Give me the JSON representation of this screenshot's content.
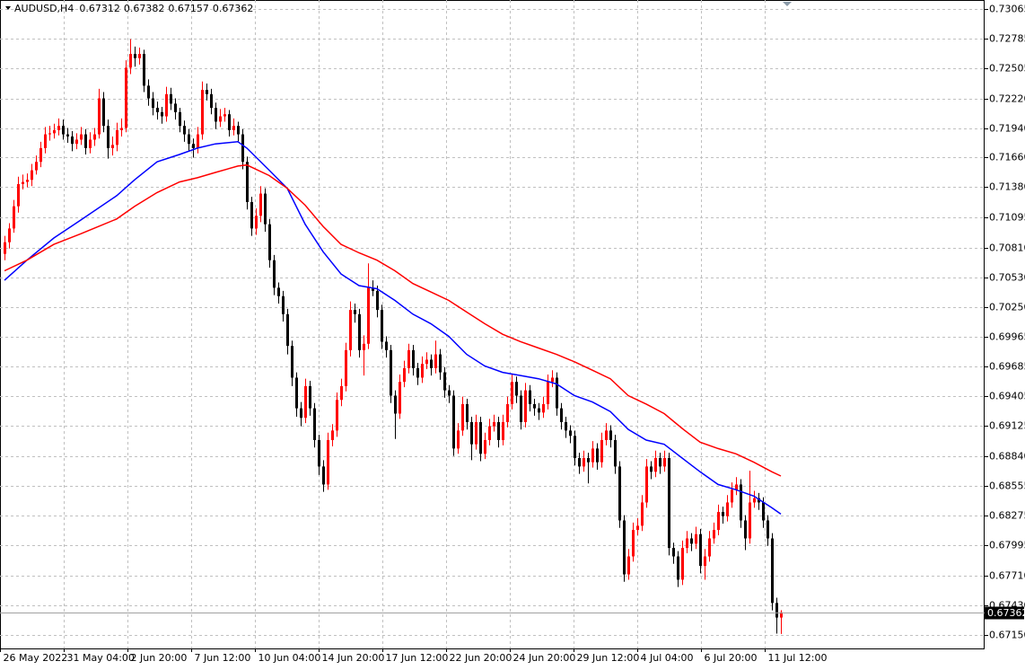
{
  "chart_data": {
    "type": "candlestick",
    "symbol": "AUDUSD,H4",
    "up_color": "#ff0000",
    "down_color": "#000000",
    "grid": true,
    "xlim": [
      -1,
      218.4
    ],
    "ylim": [
      0.6702,
      0.7315
    ],
    "xticks": [
      {
        "value": -1,
        "label": "26 May 2022"
      },
      {
        "value": 13.2,
        "label": "31 May 04:00"
      },
      {
        "value": 27.4,
        "label": "2 Jun 20:00"
      },
      {
        "value": 41.6,
        "label": "7 Jun 12:00"
      },
      {
        "value": 55.8,
        "label": "10 Jun 04:00"
      },
      {
        "value": 70,
        "label": "14 Jun 20:00"
      },
      {
        "value": 84.2,
        "label": "17 Jun 12:00"
      },
      {
        "value": 98.4,
        "label": "22 Jun 20:00"
      },
      {
        "value": 112.6,
        "label": "24 Jun 20:00"
      },
      {
        "value": 126.8,
        "label": "29 Jun 12:00"
      },
      {
        "value": 141,
        "label": "4 Jul 04:00"
      },
      {
        "value": 155.2,
        "label": "6 Jul 20:00"
      },
      {
        "value": 169.4,
        "label": "11 Jul 12:00"
      }
    ],
    "yticks": [
      0.73065,
      0.72785,
      0.72505,
      {
        "value": 0.7222,
        "label": "0.72220"
      },
      {
        "value": 0.7194,
        "label": "0.71940"
      },
      {
        "value": 0.7166,
        "label": "0.71660"
      },
      {
        "value": 0.7138,
        "label": "0.71380"
      },
      0.71095,
      {
        "value": 0.7081,
        "label": "0.70810"
      },
      {
        "value": 0.7053,
        "label": "0.70530"
      },
      {
        "value": 0.7025,
        "label": "0.70250"
      },
      0.69965,
      0.69685,
      0.69405,
      0.69125,
      {
        "value": 0.6884,
        "label": "0.68840"
      },
      0.68555,
      0.68275,
      0.67995,
      {
        "value": 0.6771,
        "label": "0.67710"
      },
      {
        "value": 0.6743,
        "label": "0.67430"
      },
      {
        "value": 0.6715,
        "label": "0.67150"
      }
    ],
    "candles": [
      [
        0.7075,
        0.7092,
        0.7069,
        0.7086
      ],
      [
        0.7086,
        0.7104,
        0.708,
        0.7099
      ],
      [
        0.7099,
        0.7126,
        0.7095,
        0.712
      ],
      [
        0.712,
        0.7148,
        0.7114,
        0.7141
      ],
      [
        0.7141,
        0.715,
        0.7136,
        0.7143
      ],
      [
        0.7143,
        0.7151,
        0.7138,
        0.7145
      ],
      [
        0.7145,
        0.716,
        0.7139,
        0.7154
      ],
      [
        0.7154,
        0.7168,
        0.715,
        0.7162
      ],
      [
        0.7162,
        0.7181,
        0.7157,
        0.7175
      ],
      [
        0.7175,
        0.7195,
        0.717,
        0.7188
      ],
      [
        0.7188,
        0.7196,
        0.7182,
        0.7189
      ],
      [
        0.7189,
        0.7198,
        0.7184,
        0.7192
      ],
      [
        0.7192,
        0.7203,
        0.7187,
        0.7196
      ],
      [
        0.7196,
        0.7202,
        0.7183,
        0.7188
      ],
      [
        0.7188,
        0.7194,
        0.718,
        0.7186
      ],
      [
        0.7186,
        0.7191,
        0.7172,
        0.7179
      ],
      [
        0.7179,
        0.7189,
        0.7174,
        0.7183
      ],
      [
        0.7183,
        0.7195,
        0.7178,
        0.7188
      ],
      [
        0.7188,
        0.7193,
        0.7169,
        0.7175
      ],
      [
        0.7175,
        0.719,
        0.717,
        0.7183
      ],
      [
        0.7183,
        0.7194,
        0.7177,
        0.7188
      ],
      [
        0.7188,
        0.7231,
        0.7184,
        0.7222
      ],
      [
        0.7222,
        0.7228,
        0.719,
        0.7196
      ],
      [
        0.7196,
        0.7202,
        0.7165,
        0.7175
      ],
      [
        0.7175,
        0.7186,
        0.7168,
        0.7178
      ],
      [
        0.7178,
        0.7199,
        0.7172,
        0.7192
      ],
      [
        0.7192,
        0.7203,
        0.7186,
        0.7194
      ],
      [
        0.7194,
        0.7258,
        0.719,
        0.7251
      ],
      [
        0.7251,
        0.7278,
        0.7245,
        0.7264
      ],
      [
        0.7264,
        0.7271,
        0.7252,
        0.726
      ],
      [
        0.726,
        0.727,
        0.7254,
        0.7264
      ],
      [
        0.7264,
        0.7268,
        0.7228,
        0.7234
      ],
      [
        0.7234,
        0.724,
        0.7215,
        0.7222
      ],
      [
        0.7222,
        0.7228,
        0.7206,
        0.7213
      ],
      [
        0.7213,
        0.7219,
        0.7202,
        0.7209
      ],
      [
        0.7209,
        0.7214,
        0.7198,
        0.7205
      ],
      [
        0.7205,
        0.7233,
        0.72,
        0.7226
      ],
      [
        0.7226,
        0.7232,
        0.7211,
        0.7217
      ],
      [
        0.7217,
        0.7222,
        0.7202,
        0.7209
      ],
      [
        0.7209,
        0.7213,
        0.719,
        0.7196
      ],
      [
        0.7196,
        0.7201,
        0.7181,
        0.7188
      ],
      [
        0.7188,
        0.7193,
        0.7172,
        0.7179
      ],
      [
        0.7179,
        0.7184,
        0.7166,
        0.7175
      ],
      [
        0.7175,
        0.7195,
        0.717,
        0.7188
      ],
      [
        0.7188,
        0.7238,
        0.7183,
        0.723
      ],
      [
        0.723,
        0.7236,
        0.722,
        0.7226
      ],
      [
        0.7226,
        0.7231,
        0.7207,
        0.7213
      ],
      [
        0.7213,
        0.7218,
        0.7193,
        0.72
      ],
      [
        0.72,
        0.7212,
        0.7195,
        0.7205
      ],
      [
        0.7205,
        0.7213,
        0.72,
        0.7207
      ],
      [
        0.7207,
        0.7211,
        0.7186,
        0.7192
      ],
      [
        0.7192,
        0.7203,
        0.7187,
        0.7196
      ],
      [
        0.7196,
        0.72,
        0.7181,
        0.7188
      ],
      [
        0.7188,
        0.7193,
        0.7155,
        0.7162
      ],
      [
        0.7162,
        0.7167,
        0.7117,
        0.7124
      ],
      [
        0.7124,
        0.7129,
        0.7092,
        0.7099
      ],
      [
        0.7099,
        0.7118,
        0.7093,
        0.7111
      ],
      [
        0.7111,
        0.7139,
        0.7105,
        0.7132
      ],
      [
        0.7132,
        0.7137,
        0.7096,
        0.7103
      ],
      [
        0.7103,
        0.7108,
        0.7062,
        0.7069
      ],
      [
        0.7069,
        0.7074,
        0.7036,
        0.7043
      ],
      [
        0.7043,
        0.7048,
        0.7028,
        0.7035
      ],
      [
        0.7035,
        0.704,
        0.7011,
        0.7018
      ],
      [
        0.7018,
        0.7023,
        0.698,
        0.6988
      ],
      [
        0.6988,
        0.6993,
        0.695,
        0.6958
      ],
      [
        0.6958,
        0.6963,
        0.6921,
        0.6929
      ],
      [
        0.6929,
        0.6935,
        0.6912,
        0.692
      ],
      [
        0.692,
        0.6957,
        0.6915,
        0.695
      ],
      [
        0.695,
        0.6955,
        0.6922,
        0.6929
      ],
      [
        0.6929,
        0.6934,
        0.6892,
        0.6899
      ],
      [
        0.6899,
        0.6904,
        0.6866,
        0.6874
      ],
      [
        0.6874,
        0.688,
        0.685,
        0.6857
      ],
      [
        0.6857,
        0.6906,
        0.6852,
        0.6899
      ],
      [
        0.6899,
        0.6914,
        0.6893,
        0.6908
      ],
      [
        0.6908,
        0.6944,
        0.6902,
        0.6937
      ],
      [
        0.6937,
        0.6957,
        0.6931,
        0.695
      ],
      [
        0.695,
        0.6991,
        0.6945,
        0.6984
      ],
      [
        0.6984,
        0.703,
        0.6978,
        0.7022
      ],
      [
        0.7022,
        0.7028,
        0.701,
        0.7018
      ],
      [
        0.7018,
        0.7023,
        0.6977,
        0.6984
      ],
      [
        0.6984,
        0.6998,
        0.696,
        0.699
      ],
      [
        0.699,
        0.7066,
        0.6985,
        0.7043
      ],
      [
        0.7043,
        0.705,
        0.7035,
        0.704
      ],
      [
        0.704,
        0.7045,
        0.7015,
        0.7022
      ],
      [
        0.7022,
        0.7027,
        0.6985,
        0.6992
      ],
      [
        0.6992,
        0.6997,
        0.6977,
        0.6984
      ],
      [
        0.6984,
        0.6989,
        0.6934,
        0.6941
      ],
      [
        0.6941,
        0.6946,
        0.69,
        0.6924
      ],
      [
        0.6924,
        0.6961,
        0.6919,
        0.6954
      ],
      [
        0.6954,
        0.6974,
        0.6949,
        0.6967
      ],
      [
        0.6967,
        0.699,
        0.6962,
        0.6984
      ],
      [
        0.6984,
        0.6989,
        0.696,
        0.6967
      ],
      [
        0.6967,
        0.6972,
        0.6951,
        0.6958
      ],
      [
        0.6958,
        0.6978,
        0.6953,
        0.6971
      ],
      [
        0.6971,
        0.6982,
        0.6966,
        0.6975
      ],
      [
        0.6975,
        0.698,
        0.696,
        0.6967
      ],
      [
        0.6967,
        0.6993,
        0.6962,
        0.698
      ],
      [
        0.698,
        0.6985,
        0.6956,
        0.6963
      ],
      [
        0.6963,
        0.6968,
        0.6939,
        0.6946
      ],
      [
        0.6946,
        0.6951,
        0.6934,
        0.6941
      ],
      [
        0.6941,
        0.6946,
        0.6884,
        0.6891
      ],
      [
        0.6891,
        0.6915,
        0.6886,
        0.6908
      ],
      [
        0.6908,
        0.694,
        0.6903,
        0.6933
      ],
      [
        0.6933,
        0.6938,
        0.6909,
        0.6916
      ],
      [
        0.6916,
        0.6921,
        0.688,
        0.6895
      ],
      [
        0.6895,
        0.6923,
        0.689,
        0.6916
      ],
      [
        0.6916,
        0.6921,
        0.6879,
        0.6886
      ],
      [
        0.6886,
        0.6906,
        0.6881,
        0.6899
      ],
      [
        0.6899,
        0.6919,
        0.6894,
        0.6912
      ],
      [
        0.6912,
        0.6923,
        0.6907,
        0.6916
      ],
      [
        0.6916,
        0.6921,
        0.6892,
        0.6899
      ],
      [
        0.6899,
        0.6923,
        0.6894,
        0.6916
      ],
      [
        0.6916,
        0.694,
        0.6911,
        0.6933
      ],
      [
        0.6933,
        0.6961,
        0.6928,
        0.6954
      ],
      [
        0.6954,
        0.6959,
        0.6934,
        0.6941
      ],
      [
        0.6941,
        0.6946,
        0.6909,
        0.6916
      ],
      [
        0.6916,
        0.6953,
        0.6911,
        0.6946
      ],
      [
        0.6946,
        0.6951,
        0.6926,
        0.6933
      ],
      [
        0.6933,
        0.6938,
        0.6922,
        0.6929
      ],
      [
        0.6929,
        0.6934,
        0.6918,
        0.6925
      ],
      [
        0.6925,
        0.694,
        0.692,
        0.6933
      ],
      [
        0.6933,
        0.6961,
        0.6928,
        0.6954
      ],
      [
        0.6954,
        0.6965,
        0.6949,
        0.6958
      ],
      [
        0.6958,
        0.6963,
        0.6922,
        0.6929
      ],
      [
        0.6929,
        0.6934,
        0.6909,
        0.6916
      ],
      [
        0.6916,
        0.6921,
        0.6901,
        0.6908
      ],
      [
        0.6908,
        0.6913,
        0.6896,
        0.6903
      ],
      [
        0.6903,
        0.6908,
        0.6875,
        0.6882
      ],
      [
        0.6882,
        0.6887,
        0.6867,
        0.6874
      ],
      [
        0.6874,
        0.6889,
        0.6869,
        0.6882
      ],
      [
        0.6882,
        0.6887,
        0.6858,
        0.6878
      ],
      [
        0.6878,
        0.6898,
        0.6873,
        0.6891
      ],
      [
        0.6891,
        0.6896,
        0.6871,
        0.6878
      ],
      [
        0.6878,
        0.6906,
        0.6873,
        0.6899
      ],
      [
        0.6899,
        0.6915,
        0.6894,
        0.6908
      ],
      [
        0.6908,
        0.6913,
        0.6892,
        0.6899
      ],
      [
        0.6899,
        0.6904,
        0.6867,
        0.6874
      ],
      [
        0.6874,
        0.6879,
        0.6816,
        0.6823
      ],
      [
        0.6823,
        0.6828,
        0.6765,
        0.6772
      ],
      [
        0.6772,
        0.6796,
        0.6767,
        0.6789
      ],
      [
        0.6789,
        0.6821,
        0.6784,
        0.6814
      ],
      [
        0.6814,
        0.6825,
        0.6809,
        0.6818
      ],
      [
        0.6818,
        0.6847,
        0.6813,
        0.684
      ],
      [
        0.684,
        0.6881,
        0.6835,
        0.6874
      ],
      [
        0.6874,
        0.6879,
        0.6862,
        0.6869
      ],
      [
        0.6869,
        0.6889,
        0.6864,
        0.6882
      ],
      [
        0.6882,
        0.6887,
        0.6867,
        0.6874
      ],
      [
        0.6874,
        0.6889,
        0.6869,
        0.6882
      ],
      [
        0.6882,
        0.6887,
        0.679,
        0.6797
      ],
      [
        0.6797,
        0.6802,
        0.6782,
        0.6789
      ],
      [
        0.6789,
        0.6794,
        0.676,
        0.6767
      ],
      [
        0.6767,
        0.6804,
        0.6762,
        0.6797
      ],
      [
        0.6797,
        0.6813,
        0.6792,
        0.6806
      ],
      [
        0.6806,
        0.6811,
        0.6794,
        0.6801
      ],
      [
        0.6801,
        0.6817,
        0.6796,
        0.681
      ],
      [
        0.681,
        0.6815,
        0.6773,
        0.678
      ],
      [
        0.678,
        0.6796,
        0.6767,
        0.6789
      ],
      [
        0.6789,
        0.6813,
        0.6784,
        0.6806
      ],
      [
        0.6806,
        0.6821,
        0.6801,
        0.6814
      ],
      [
        0.6814,
        0.6838,
        0.6809,
        0.6831
      ],
      [
        0.6831,
        0.6836,
        0.682,
        0.6827
      ],
      [
        0.6827,
        0.6847,
        0.6822,
        0.684
      ],
      [
        0.684,
        0.6859,
        0.6835,
        0.6852
      ],
      [
        0.6852,
        0.6864,
        0.6847,
        0.6857
      ],
      [
        0.6857,
        0.6862,
        0.6816,
        0.6823
      ],
      [
        0.6823,
        0.6828,
        0.6795,
        0.6806
      ],
      [
        0.6806,
        0.687,
        0.6801,
        0.684
      ],
      [
        0.684,
        0.6851,
        0.6835,
        0.6844
      ],
      [
        0.6844,
        0.6849,
        0.6833,
        0.684
      ],
      [
        0.684,
        0.6845,
        0.6816,
        0.6823
      ],
      [
        0.6823,
        0.6828,
        0.6799,
        0.6806
      ],
      [
        0.6806,
        0.6811,
        0.6738,
        0.6745
      ],
      [
        0.6745,
        0.675,
        0.6716,
        0.67312
      ],
      [
        0.67312,
        0.67382,
        0.67157,
        0.67362
      ]
    ],
    "moving_averages": [
      {
        "color": "#0000ff",
        "x": [
          0,
          5,
          11,
          17,
          25,
          29,
          34,
          39,
          43,
          47,
          52,
          54,
          59,
          63,
          67,
          71,
          75,
          79,
          83,
          87,
          91,
          95,
          99,
          103,
          107,
          111,
          115,
          119,
          123,
          127,
          131,
          135,
          139,
          143,
          147,
          151,
          155,
          159,
          163,
          167,
          171,
          173
        ],
        "values": [
          0.705,
          0.7069,
          0.709,
          0.7107,
          0.713,
          0.7145,
          0.7162,
          0.7169,
          0.7175,
          0.7179,
          0.7181,
          0.7175,
          0.7154,
          0.7137,
          0.7103,
          0.7077,
          0.7056,
          0.7045,
          0.7042,
          0.7031,
          0.7018,
          0.7009,
          0.6997,
          0.698,
          0.6969,
          0.6963,
          0.696,
          0.6957,
          0.6952,
          0.6941,
          0.6935,
          0.6926,
          0.6909,
          0.6899,
          0.6895,
          0.6882,
          0.6869,
          0.6857,
          0.6852,
          0.6846,
          0.6835,
          0.6829
        ]
      },
      {
        "color": "#ff0000",
        "x": [
          0,
          5,
          11,
          17,
          25,
          29,
          34,
          39,
          43,
          47,
          52,
          54,
          59,
          63,
          67,
          71,
          75,
          79,
          83,
          87,
          91,
          95,
          99,
          103,
          107,
          111,
          115,
          119,
          123,
          127,
          131,
          135,
          139,
          143,
          147,
          151,
          155,
          159,
          163,
          167,
          171,
          173
        ],
        "values": [
          0.7059,
          0.7069,
          0.7084,
          0.7094,
          0.7108,
          0.712,
          0.7133,
          0.7143,
          0.7147,
          0.7152,
          0.7158,
          0.7159,
          0.7149,
          0.7137,
          0.7121,
          0.7101,
          0.7084,
          0.7076,
          0.7069,
          0.7059,
          0.7047,
          0.7039,
          0.7031,
          0.702,
          0.7009,
          0.6999,
          0.6992,
          0.6986,
          0.698,
          0.6973,
          0.6965,
          0.6957,
          0.6941,
          0.6933,
          0.6924,
          0.691,
          0.6897,
          0.6891,
          0.6886,
          0.6878,
          0.6869,
          0.6865
        ]
      }
    ]
  }
}
